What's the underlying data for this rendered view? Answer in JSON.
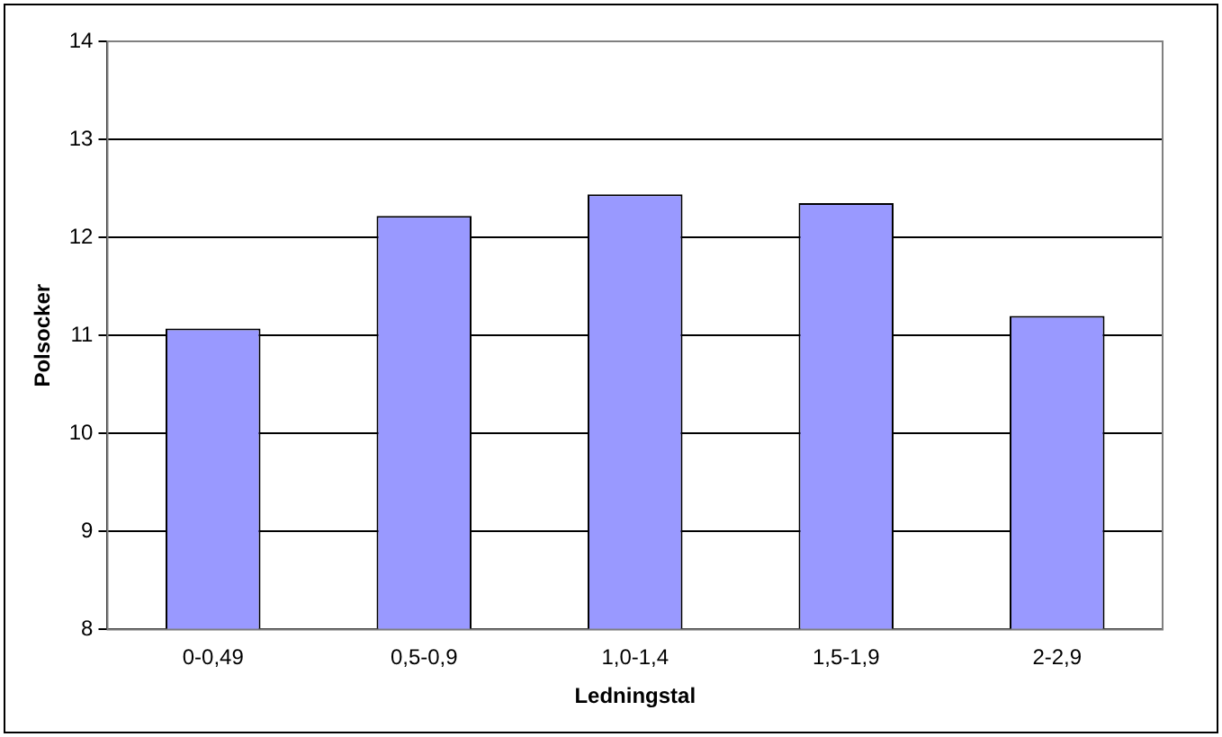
{
  "chart_data": {
    "type": "bar",
    "xlabel": "Ledningstal",
    "ylabel": "Polsocker",
    "categories": [
      "0-0,49",
      "0,5-0,9",
      "1,0-1,4",
      "1,5-1,9",
      "2-2,9"
    ],
    "values": [
      11.07,
      12.22,
      12.44,
      12.35,
      11.2
    ],
    "color": "#9999ff",
    "ylim": [
      8,
      14
    ],
    "yticks": [
      8,
      9,
      10,
      11,
      12,
      13,
      14
    ],
    "grid": "y",
    "legend": false
  }
}
